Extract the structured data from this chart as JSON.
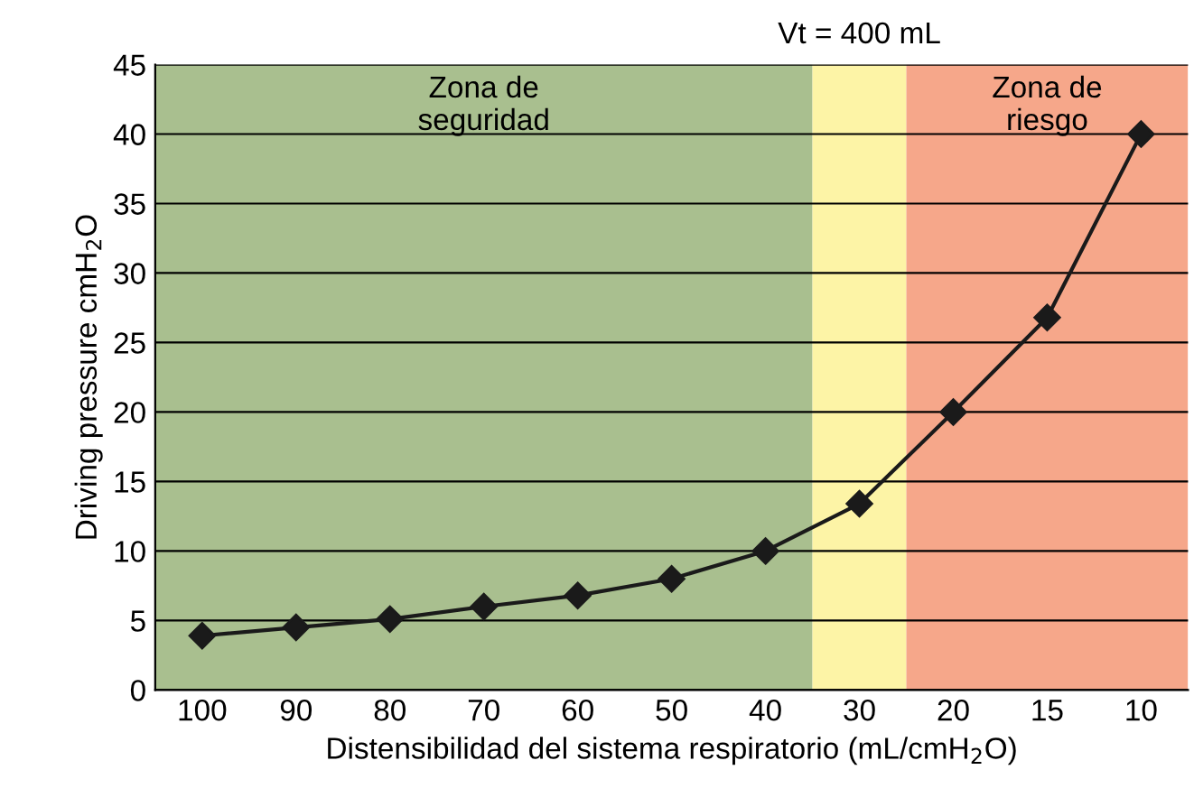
{
  "chart_data": {
    "type": "line",
    "xlabel": "Distensibilidad del sistema respiratorio (mL/cmH$_{2}$O)",
    "ylabel": "Driving pressure cmH$_{2}$O",
    "categories": [
      "100",
      "90",
      "80",
      "70",
      "60",
      "50",
      "40",
      "30",
      "20",
      "15",
      "10"
    ],
    "series": [
      {
        "color": "#1a1a1a",
        "values": [
          3.9,
          4.5,
          5.1,
          6,
          6.8,
          8,
          10,
          13.4,
          20,
          26.8,
          40
        ]
      }
    ],
    "marker": "diamond",
    "line_style": "solid",
    "ylim": [
      0,
      45
    ],
    "yticks": [
      0,
      5,
      10,
      15,
      20,
      25,
      30,
      35,
      40,
      45
    ],
    "grid": "y",
    "bands": [
      {
        "axis": "x",
        "from": "100",
        "to": "40",
        "label": "Zona de\nseguridad",
        "color": "#a9bf8f"
      },
      {
        "axis": "x",
        "from": "30",
        "to": "30",
        "color": "#fdf4a6"
      },
      {
        "axis": "x",
        "from": "20",
        "to": "10",
        "label": "Zona de\nriesgo",
        "color": "#f6a78a"
      }
    ],
    "annotations": [
      {
        "text": "Vt = 400 mL",
        "x": "30",
        "y": 45
      }
    ]
  }
}
